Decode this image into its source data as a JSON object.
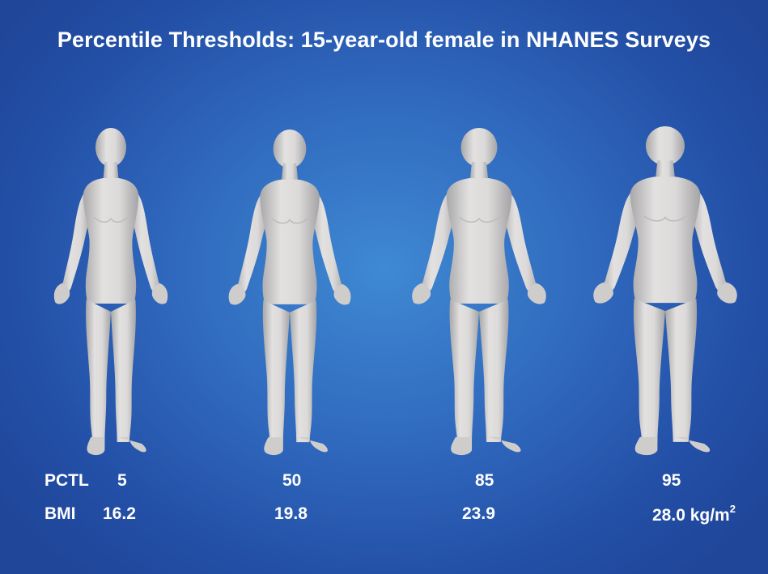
{
  "title": "Percentile Thresholds: 15-year-old female in NHANES Surveys",
  "row_labels": {
    "pctl": "PCTL",
    "bmi": "BMI"
  },
  "figures": [
    {
      "pctl": "5",
      "bmi": "16.2"
    },
    {
      "pctl": "50",
      "bmi": "19.8"
    },
    {
      "pctl": "85",
      "bmi": "23.9"
    },
    {
      "pctl": "95",
      "bmi": "28.0"
    }
  ],
  "bmi_unit": "kg/m",
  "bmi_unit_exp": "2",
  "colors": {
    "background_center": "#3f89d3",
    "background_edge": "#1f4699",
    "body": "#d9d7d6",
    "text": "#ffffff"
  }
}
